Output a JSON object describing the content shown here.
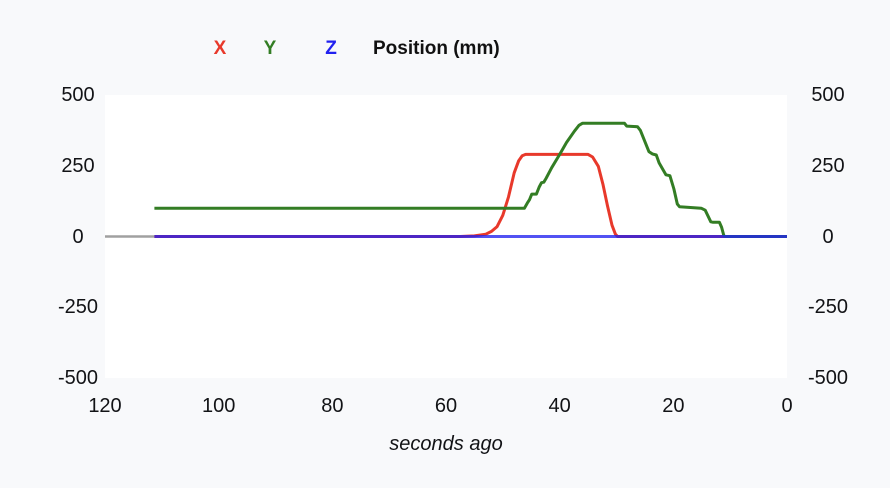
{
  "legend": {
    "title": "Position (mm)",
    "entries": [
      {
        "label": "X",
        "color": "#e8392b"
      },
      {
        "label": "Y",
        "color": "#337d24"
      },
      {
        "label": "Z",
        "color": "#2121f0"
      }
    ]
  },
  "axes": {
    "x_label": "seconds ago"
  },
  "chart_data": {
    "type": "line",
    "title": "Position (mm)",
    "xlabel": "seconds ago",
    "ylabel": "mm",
    "x_ticks": [
      120,
      100,
      80,
      60,
      40,
      20,
      0
    ],
    "y_ticks": [
      500,
      250,
      0,
      -250,
      -500
    ],
    "xlim": [
      120,
      0
    ],
    "ylim": [
      -500,
      500
    ],
    "x_axis_reversed": true,
    "grid": false,
    "legend_position": "top",
    "y_axis_sides": [
      "left",
      "right"
    ],
    "no_data_segment": {
      "x_from": 120,
      "x_to": 111.3,
      "y": 0,
      "color": "#a0a0a0"
    },
    "series": [
      {
        "name": "X",
        "color": "#e8392b",
        "points": [
          [
            111.3,
            0
          ],
          [
            57.5,
            0
          ],
          [
            55,
            2
          ],
          [
            53,
            8
          ],
          [
            52,
            18
          ],
          [
            51,
            35
          ],
          [
            50,
            75
          ],
          [
            49,
            140
          ],
          [
            48,
            225
          ],
          [
            47.2,
            268
          ],
          [
            46.6,
            285
          ],
          [
            46,
            290
          ],
          [
            35.0,
            290
          ],
          [
            34.2,
            281
          ],
          [
            33.2,
            248
          ],
          [
            32.4,
            185
          ],
          [
            31.6,
            110
          ],
          [
            30.8,
            40
          ],
          [
            30.2,
            8
          ],
          [
            29.8,
            0
          ],
          [
            0,
            0
          ]
        ]
      },
      {
        "name": "Y",
        "color": "#337d24",
        "points": [
          [
            111.3,
            100
          ],
          [
            46.2,
            100
          ],
          [
            45.7,
            118
          ],
          [
            45.3,
            130
          ],
          [
            44.9,
            150
          ],
          [
            44.1,
            150
          ],
          [
            43.6,
            175
          ],
          [
            43.2,
            190
          ],
          [
            42.8,
            192
          ],
          [
            42.4,
            205
          ],
          [
            41.4,
            243
          ],
          [
            40.0,
            290
          ],
          [
            38.8,
            332
          ],
          [
            37.4,
            372
          ],
          [
            36.6,
            393
          ],
          [
            36.0,
            400
          ],
          [
            28.6,
            400
          ],
          [
            28.2,
            390
          ],
          [
            26.3,
            388
          ],
          [
            25.8,
            375
          ],
          [
            24.3,
            300
          ],
          [
            23.7,
            292
          ],
          [
            23.0,
            288
          ],
          [
            22.5,
            260
          ],
          [
            21.3,
            218
          ],
          [
            20.6,
            215
          ],
          [
            19.9,
            168
          ],
          [
            19.3,
            115
          ],
          [
            18.9,
            105
          ],
          [
            15.1,
            100
          ],
          [
            14.4,
            93
          ],
          [
            13.4,
            52
          ],
          [
            13.0,
            50
          ],
          [
            11.9,
            50
          ],
          [
            11.5,
            33
          ],
          [
            11.1,
            2
          ],
          [
            10.8,
            0
          ],
          [
            0,
            0
          ]
        ]
      },
      {
        "name": "Z",
        "color": "#2121f0",
        "points": [
          [
            111.3,
            0
          ],
          [
            0,
            0
          ]
        ]
      }
    ]
  }
}
